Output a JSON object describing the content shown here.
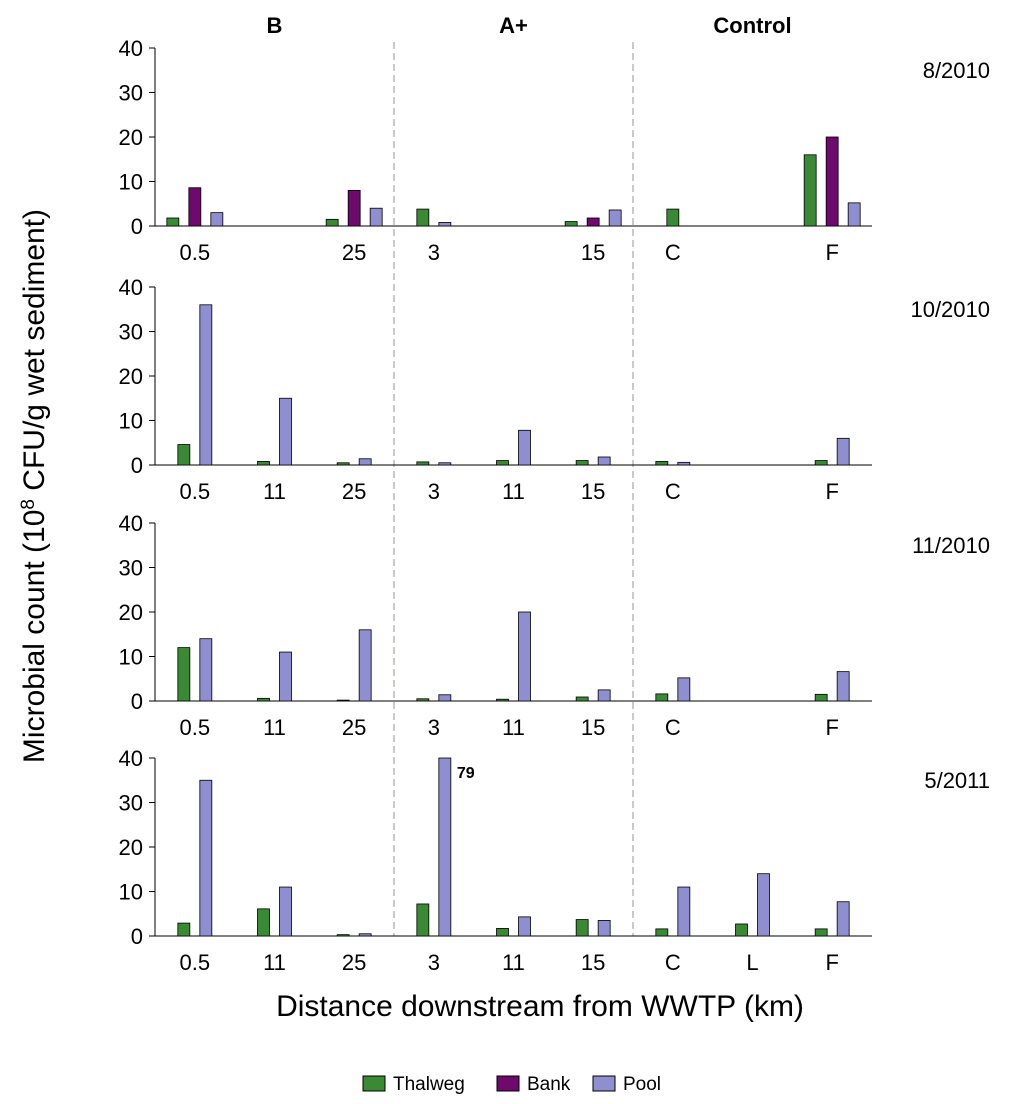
{
  "chart_data": {
    "type": "bar",
    "ylabel_prefix": "Microbial count (10",
    "ylabel_exp": "8",
    "ylabel_suffix": " CFU/g wet sediment)",
    "xlabel": "Distance downstream from WWTP (km)",
    "groups": [
      "B",
      "A+",
      "Control"
    ],
    "ylim": [
      0,
      40
    ],
    "yticks": [
      0,
      10,
      20,
      30,
      40
    ],
    "series": [
      {
        "name": "Thalweg",
        "color": "#3A8A35"
      },
      {
        "name": "Bank",
        "color": "#6E0A6E"
      },
      {
        "name": "Pool",
        "color": "#8E8ED0"
      }
    ],
    "slots": [
      {
        "label": "0.5",
        "group": "B"
      },
      {
        "label": "11",
        "group": "B"
      },
      {
        "label": "25",
        "group": "B"
      },
      {
        "label": "3",
        "group": "A+"
      },
      {
        "label": "11",
        "group": "A+"
      },
      {
        "label": "15",
        "group": "A+"
      },
      {
        "label": "C",
        "group": "Control"
      },
      {
        "label": "L",
        "group": "Control"
      },
      {
        "label": "F",
        "group": "Control"
      }
    ],
    "panels": [
      {
        "date": "8/2010",
        "shown_labels": [
          0,
          2,
          3,
          5,
          6,
          8
        ],
        "values": {
          "Thalweg": [
            1.8,
            null,
            1.5,
            3.8,
            null,
            1.0,
            3.8,
            null,
            16
          ],
          "Bank": [
            8.6,
            null,
            8.0,
            null,
            null,
            1.8,
            null,
            null,
            20
          ],
          "Pool": [
            3.0,
            null,
            4.0,
            0.8,
            null,
            3.6,
            null,
            null,
            5.2
          ]
        }
      },
      {
        "date": "10/2010",
        "shown_labels": [
          0,
          1,
          2,
          3,
          4,
          5,
          6,
          8
        ],
        "values": {
          "Thalweg": [
            4.6,
            0.8,
            0.5,
            0.7,
            1.0,
            1.0,
            0.8,
            null,
            1.0
          ],
          "Bank": [
            null,
            null,
            null,
            null,
            null,
            null,
            null,
            null,
            null
          ],
          "Pool": [
            36,
            15,
            1.4,
            0.5,
            7.8,
            1.8,
            0.6,
            null,
            6.0
          ]
        }
      },
      {
        "date": "11/2010",
        "shown_labels": [
          0,
          1,
          2,
          3,
          4,
          5,
          6,
          8
        ],
        "values": {
          "Thalweg": [
            12,
            0.6,
            0.2,
            0.5,
            0.4,
            0.9,
            1.6,
            null,
            1.5
          ],
          "Bank": [
            null,
            null,
            null,
            null,
            null,
            null,
            null,
            null,
            null
          ],
          "Pool": [
            14,
            11,
            16,
            1.4,
            20,
            2.5,
            5.2,
            null,
            6.6
          ]
        }
      },
      {
        "date": "5/2011",
        "shown_labels": [
          0,
          1,
          2,
          3,
          4,
          5,
          6,
          7,
          8
        ],
        "values": {
          "Thalweg": [
            2.9,
            6.1,
            0.3,
            7.2,
            1.7,
            3.7,
            1.6,
            2.7,
            1.6
          ],
          "Bank": [
            null,
            null,
            null,
            null,
            null,
            null,
            null,
            null,
            null
          ],
          "Pool": [
            35,
            11,
            0.5,
            79,
            4.3,
            3.5,
            11,
            14,
            7.7
          ]
        },
        "annotation": {
          "slot": 3,
          "series": "Pool",
          "text": "79"
        }
      }
    ]
  }
}
